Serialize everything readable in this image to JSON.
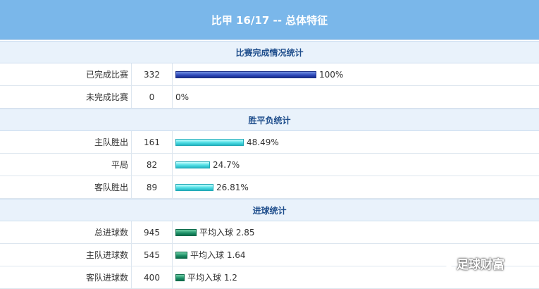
{
  "title": "比甲 16/17 -- 总体特征",
  "sections": {
    "completion": {
      "header": "比赛完成情况统计",
      "rows": [
        {
          "label": "已完成比赛",
          "count": "332",
          "bar_text": "100%",
          "fraction": 1.0
        },
        {
          "label": "未完成比赛",
          "count": "0",
          "bar_text": "0%",
          "fraction": 0.0
        }
      ]
    },
    "results": {
      "header": "胜平负统计",
      "rows": [
        {
          "label": "主队胜出",
          "count": "161",
          "bar_text": "48.49%",
          "fraction": 0.4849
        },
        {
          "label": "平局",
          "count": "82",
          "bar_text": "24.7%",
          "fraction": 0.247
        },
        {
          "label": "客队胜出",
          "count": "89",
          "bar_text": "26.81%",
          "fraction": 0.2681
        }
      ]
    },
    "goals": {
      "header": "进球统计",
      "rows": [
        {
          "label": "总进球数",
          "count": "945",
          "bar_text": "平均入球 2.85",
          "value": 2.85
        },
        {
          "label": "主队进球数",
          "count": "545",
          "bar_text": "平均入球 1.64",
          "value": 1.64
        },
        {
          "label": "客队进球数",
          "count": "400",
          "bar_text": "平均入球 1.2",
          "value": 1.2
        }
      ]
    }
  },
  "watermark": "足球财富",
  "colors": {
    "title_bg": "#7ab7ea",
    "section_bg": "#e9f2fb",
    "section_text": "#1f4e8c",
    "bar_blue": "#2b46b8",
    "bar_cyan": "#56e0e6",
    "bar_green": "#1b8e66"
  }
}
